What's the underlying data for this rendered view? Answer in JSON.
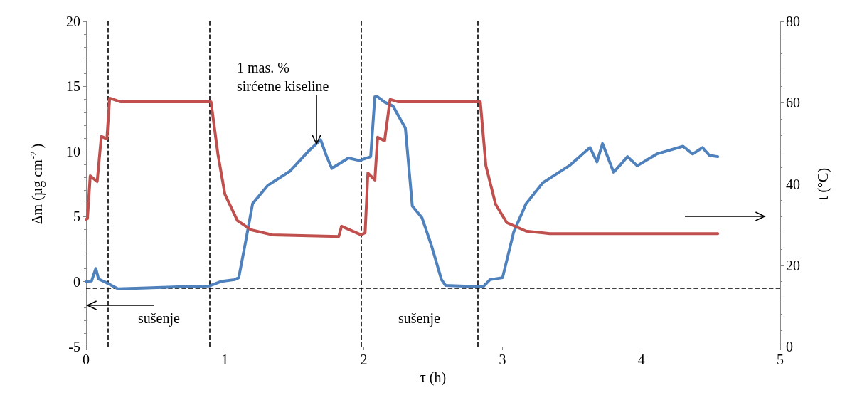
{
  "chart_data": {
    "type": "line",
    "xlabel": "τ (h)",
    "ylabel": "Δm (µg cm$^{-2}$)",
    "y2label": "t (°C)",
    "xlim": [
      0,
      5
    ],
    "xticks": [
      0,
      1,
      2,
      3,
      4,
      5
    ],
    "ylim": [
      -5,
      20
    ],
    "yticks": [
      -5,
      0,
      5,
      10,
      15,
      20
    ],
    "y2lim": [
      0,
      80
    ],
    "y2ticks": [
      0,
      20,
      40,
      60,
      80
    ],
    "grid": false,
    "marker": "none",
    "line_style": "solid",
    "series": [
      {
        "color": "#4f81bd",
        "x": [
          0,
          0.04,
          0.07,
          0.09,
          0.14,
          0.23,
          0.4,
          0.66,
          0.89,
          0.97,
          1.07,
          1.1,
          1.15,
          1.2,
          1.31,
          1.47,
          1.6,
          1.69,
          1.73,
          1.77,
          1.89,
          1.97,
          2.05,
          2.08,
          2.1,
          2.15,
          2.21,
          2.3,
          2.35,
          2.42,
          2.49,
          2.56,
          2.59,
          2.86,
          2.91,
          3.0,
          3.08,
          3.17,
          3.29,
          3.48,
          3.63,
          3.68,
          3.72,
          3.8,
          3.9,
          3.97,
          4.11,
          4.3,
          4.37,
          4.44,
          4.49,
          4.55
        ],
        "values": [
          0,
          0.05,
          1.0,
          0.2,
          -0.05,
          -0.55,
          -0.5,
          -0.4,
          -0.33,
          0,
          0.15,
          0.3,
          3.1,
          6.0,
          7.4,
          8.5,
          10.0,
          10.9,
          9.7,
          8.7,
          9.5,
          9.3,
          9.6,
          14.2,
          14.2,
          13.8,
          13.5,
          11.8,
          5.8,
          4.9,
          2.7,
          0.15,
          -0.3,
          -0.4,
          0.15,
          0.3,
          3.8,
          6.0,
          7.6,
          8.9,
          10.3,
          9.2,
          10.6,
          8.4,
          9.6,
          8.9,
          9.8,
          10.4,
          9.8,
          10.3,
          9.7,
          9.6
        ]
      },
      {
        "color": "#c0504d",
        "axis": "y2",
        "x": [
          0,
          0.01,
          0.03,
          0.08,
          0.11,
          0.15,
          0.17,
          0.25,
          0.9,
          0.95,
          1.0,
          1.09,
          1.19,
          1.34,
          1.82,
          1.84,
          1.98,
          2.01,
          2.03,
          2.08,
          2.1,
          2.15,
          2.19,
          2.25,
          2.84,
          2.88,
          2.95,
          3.03,
          3.17,
          3.34,
          4.55
        ],
        "values": [
          31.3,
          31.5,
          42,
          40.6,
          51.7,
          51.1,
          61.1,
          60.2,
          60.2,
          47.3,
          37.5,
          31.0,
          28.7,
          27.5,
          27.1,
          29.6,
          27.5,
          28.0,
          42.7,
          41.0,
          51.5,
          50.6,
          60.8,
          60.2,
          60.2,
          44.5,
          35.0,
          30.5,
          28.4,
          27.8,
          27.8
        ]
      }
    ],
    "ref_lines": [
      {
        "axis": "x",
        "value": 0.16,
        "line_style": "dashed"
      },
      {
        "axis": "x",
        "value": 0.89,
        "line_style": "dashed"
      },
      {
        "axis": "x",
        "value": 1.98,
        "line_style": "dashed"
      },
      {
        "axis": "x",
        "value": 2.82,
        "line_style": "dashed"
      },
      {
        "axis": "y",
        "value": -0.5,
        "line_style": "dashed"
      }
    ],
    "annotations": [
      {
        "text": "1 mas. %\nsirćetne kiseline",
        "x": 1.66,
        "y": 10.5
      },
      "sušenje",
      "sušenje"
    ]
  }
}
